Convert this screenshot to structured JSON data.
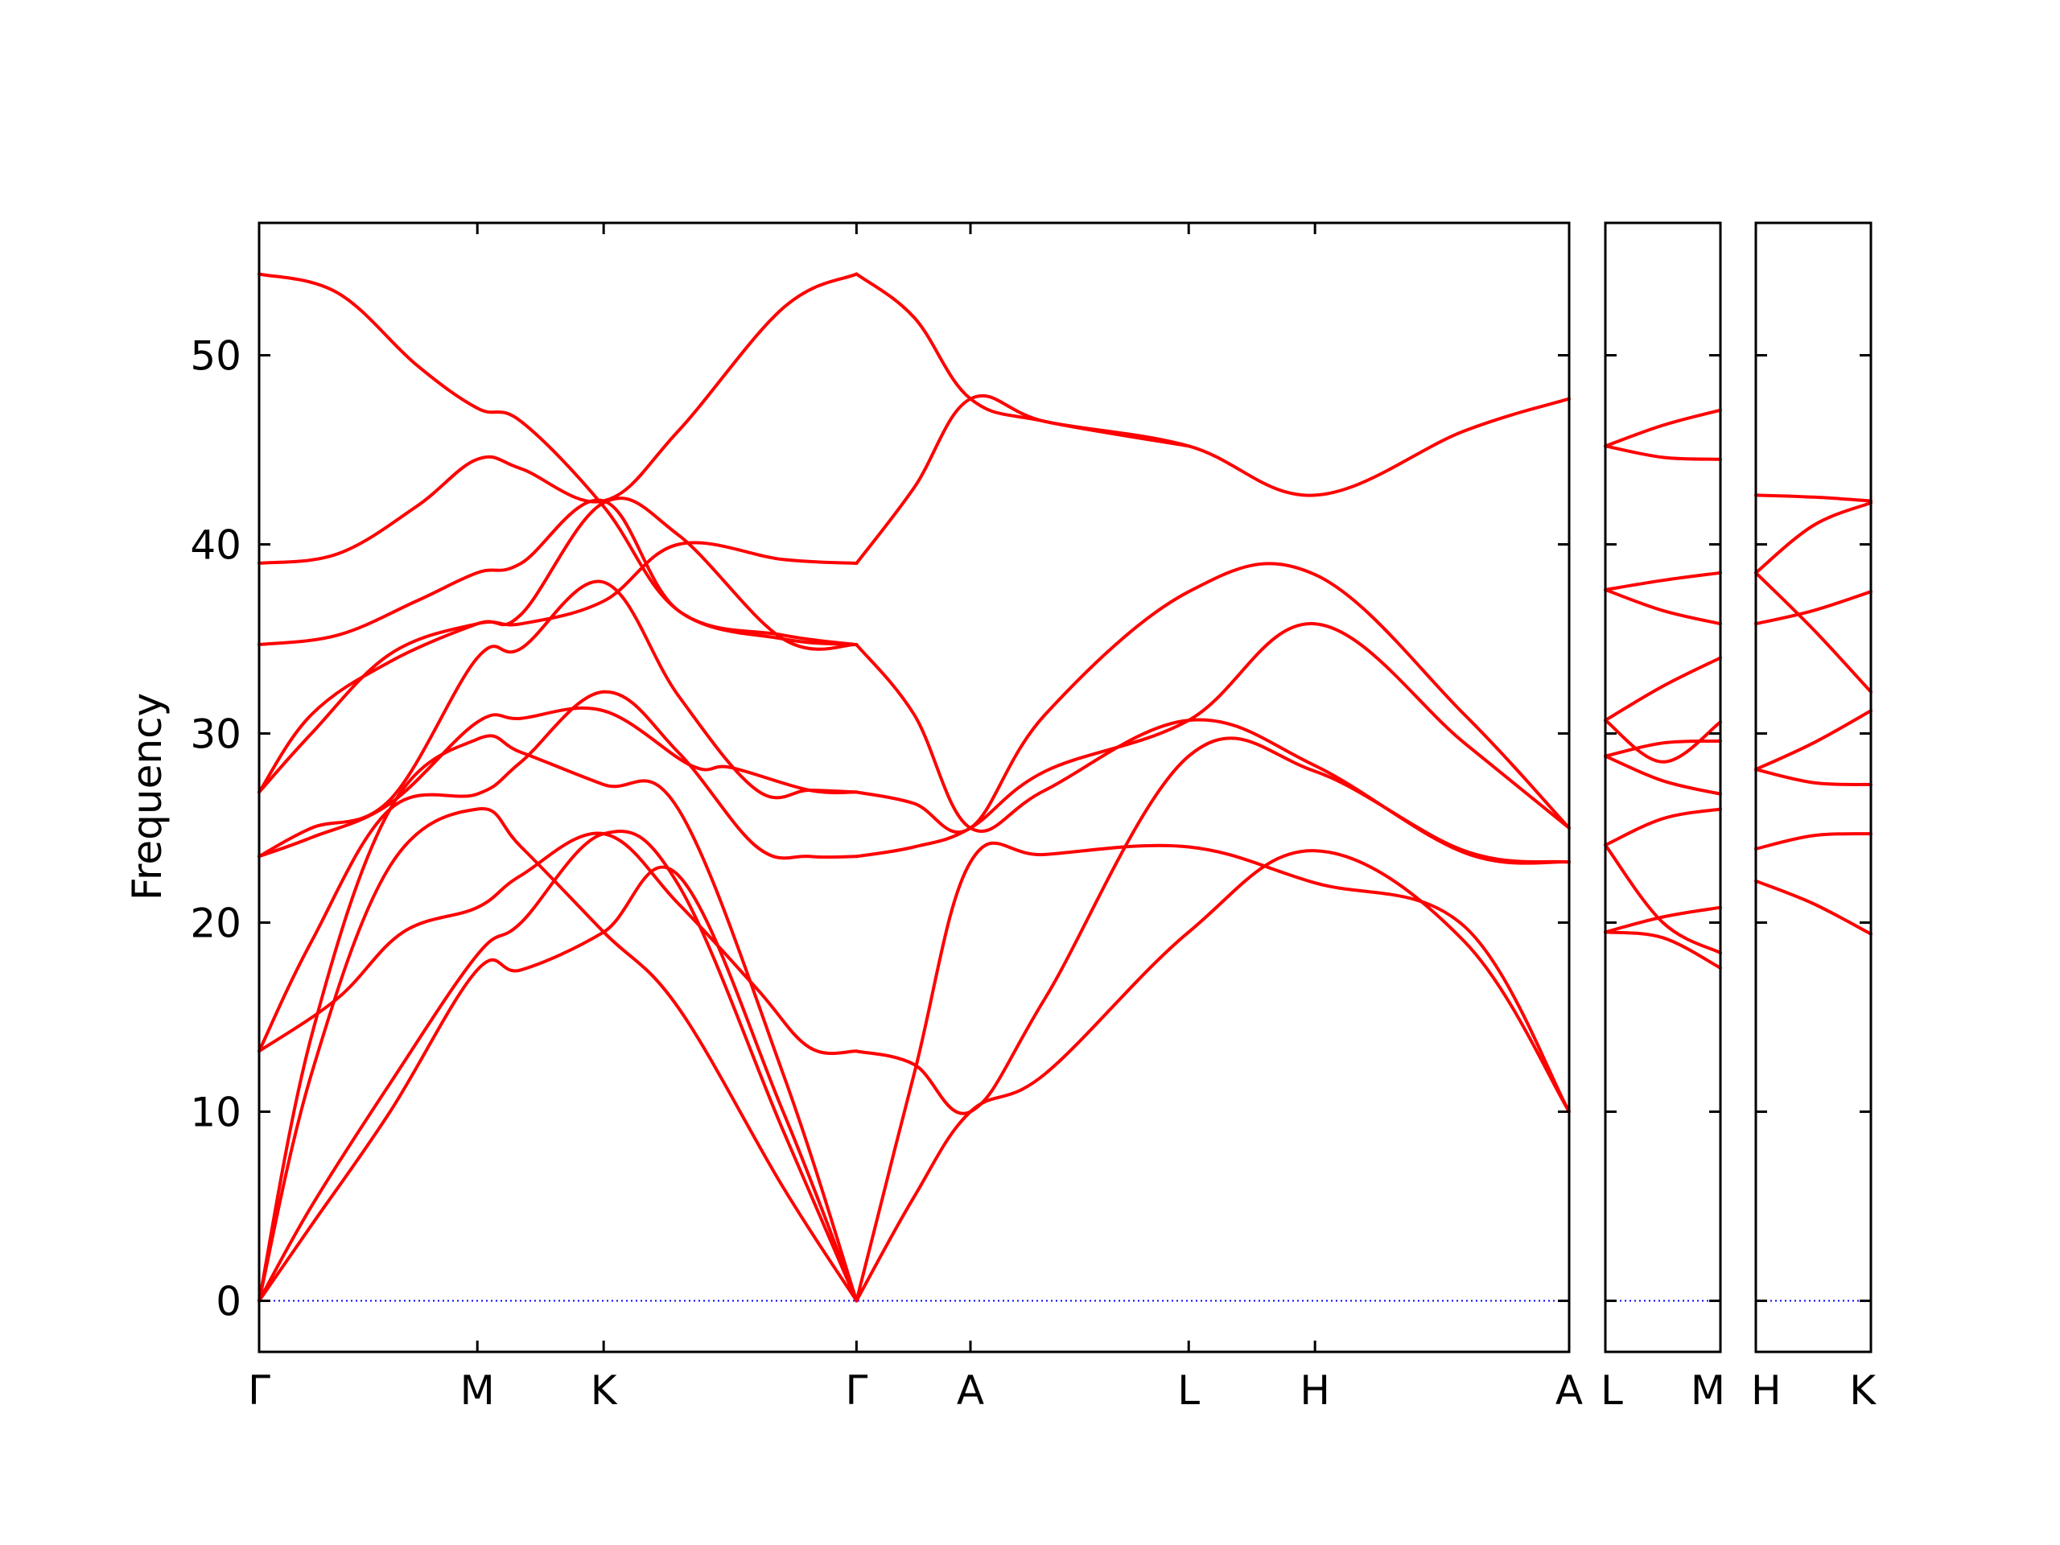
{
  "chart_data": {
    "type": "line",
    "ylabel": "Frequency",
    "ylim": [
      -2.7,
      57
    ],
    "yticks": [
      "0",
      "10",
      "20",
      "30",
      "40",
      "50"
    ],
    "colors": {
      "band": "#ff0000",
      "zero_line": "#0000ff"
    },
    "zero_line": "dotted",
    "panels": [
      {
        "name": "Γ-M-K-Γ-A-L-H-A",
        "xticks": [
          "Γ",
          "M",
          "K",
          "Γ",
          "A",
          "L",
          "H",
          "A"
        ],
        "xtick_positions": [
          0,
          0.833,
          1.315,
          2.28,
          2.715,
          3.548,
          4.03,
          5.0
        ],
        "xlim": [
          0,
          5.0
        ],
        "series": [
          {
            "x": [
              0,
              0.2,
              0.5,
              0.833,
              1.0,
              1.315,
              1.6,
              2.0,
              2.28
            ],
            "values": [
              0,
              4,
              10,
              17.5,
              17.5,
              19.5,
              22.5,
              10,
              0
            ]
          },
          {
            "x": [
              0,
              0.2,
              0.5,
              0.833,
              1.0,
              1.315,
              1.6,
              2.0,
              2.28
            ],
            "values": [
              0,
              5,
              11.5,
              18.3,
              20,
              24.7,
              22,
              9,
              0
            ]
          },
          {
            "x": [
              0,
              0.2,
              0.5,
              0.833,
              1.0,
              1.315,
              1.6,
              2.0,
              2.28
            ],
            "values": [
              0,
              12,
              23,
              26,
              24,
              19.5,
              15.5,
              6,
              0
            ]
          },
          {
            "x": [
              0,
              0.2,
              0.5,
              0.833,
              1.0,
              1.315,
              1.6,
              2.0,
              2.28
            ],
            "values": [
              0,
              14,
              26,
              29.7,
              29,
              27.3,
              26,
              12,
              0
            ]
          },
          {
            "x": [
              0,
              0.3,
              0.55,
              0.833,
              1.0,
              1.315,
              1.6,
              1.9,
              2.1,
              2.28
            ],
            "values": [
              13.2,
              16,
              19.5,
              20.8,
              22.5,
              24.7,
              21,
              16.5,
              13.4,
              13.2
            ]
          },
          {
            "x": [
              0,
              0.2,
              0.5,
              0.833,
              1.0,
              1.315,
              1.6,
              1.9,
              2.1,
              2.28
            ],
            "values": [
              13.2,
              19,
              26,
              26.8,
              28.5,
              32.2,
              29,
              24,
              23.5,
              23.5
            ]
          },
          {
            "x": [
              0,
              0.2,
              0.5,
              0.833,
              1.0,
              1.315,
              1.65,
              1.8,
              2.1,
              2.28
            ],
            "values": [
              23.5,
              24.5,
              26.3,
              30.6,
              30.8,
              31.2,
              28.3,
              28.2,
              27,
              26.9
            ]
          },
          {
            "x": [
              0,
              0.2,
              0.5,
              0.833,
              1.0,
              1.315,
              1.6,
              1.9,
              2.1,
              2.28
            ],
            "values": [
              23.5,
              25,
              26.5,
              34,
              34.5,
              38,
              32,
              27,
              27,
              26.9
            ]
          },
          {
            "x": [
              0,
              0.2,
              0.5,
              0.833,
              1.0,
              1.315,
              1.6,
              2.0,
              2.28
            ],
            "values": [
              26.9,
              30,
              34.2,
              35.8,
              35.8,
              37,
              40,
              39.2,
              39
            ]
          },
          {
            "x": [
              0,
              0.2,
              0.5,
              0.833,
              1.0,
              1.315,
              1.6,
              2.0,
              2.28
            ],
            "values": [
              26.9,
              31,
              33.8,
              35.8,
              36.3,
              42.2,
              40.5,
              35,
              34.7
            ]
          },
          {
            "x": [
              0,
              0.3,
              0.6,
              0.833,
              1.0,
              1.315,
              1.6,
              2.0,
              2.28
            ],
            "values": [
              34.7,
              35.2,
              37,
              38.5,
              39,
              42.3,
              36.5,
              35.2,
              34.7
            ]
          },
          {
            "x": [
              0,
              0.3,
              0.6,
              0.833,
              1.0,
              1.315,
              1.6,
              2.0,
              2.28
            ],
            "values": [
              39,
              39.5,
              42,
              44.5,
              44,
              42.3,
              46,
              52.5,
              54.3
            ]
          },
          {
            "x": [
              0,
              0.3,
              0.6,
              0.833,
              1.0,
              1.315,
              1.6,
              2.0,
              2.28
            ],
            "values": [
              54.3,
              53.3,
              49.5,
              47.2,
              46.5,
              42,
              36.5,
              35,
              34.7
            ]
          },
          {
            "x": [
              2.28,
              2.5,
              2.715,
              3.0,
              3.548,
              4.03,
              4.6,
              5.0
            ],
            "values": [
              0,
              5.5,
              10,
              12,
              19.5,
              23.8,
              19,
              10
            ]
          },
          {
            "x": [
              2.28,
              2.5,
              2.715,
              3.0,
              3.548,
              4.03,
              4.6,
              5.0
            ],
            "values": [
              0,
              12,
              23.2,
              23.6,
              24,
              22.1,
              19.8,
              10
            ]
          },
          {
            "x": [
              2.28,
              2.5,
              2.715,
              3.0,
              3.548,
              4.03,
              4.6,
              5.0
            ],
            "values": [
              13.2,
              12.5,
              10,
              16,
              28.8,
              28,
              23.8,
              23.2
            ]
          },
          {
            "x": [
              2.28,
              2.5,
              2.715,
              3.0,
              3.548,
              4.03,
              4.6,
              5.0
            ],
            "values": [
              23.5,
              24,
              25,
              28,
              30.7,
              35.8,
              29.5,
              25
            ]
          },
          {
            "x": [
              2.28,
              2.5,
              2.715,
              3.0,
              3.548,
              4.03,
              4.6,
              5.0
            ],
            "values": [
              26.9,
              26.3,
              25,
              31,
              37.5,
              38.4,
              31,
              25
            ]
          },
          {
            "x": [
              2.28,
              2.5,
              2.715,
              3.0,
              3.548,
              4.03,
              4.6,
              5.0
            ],
            "values": [
              34.7,
              31,
              25,
              27,
              30.7,
              28.3,
              23.7,
              23.2
            ]
          },
          {
            "x": [
              2.28,
              2.5,
              2.715,
              3.0,
              3.548,
              4.03,
              4.6,
              5.0
            ],
            "values": [
              39,
              43,
              47.7,
              46.5,
              45.2,
              42.6,
              46,
              47.7
            ]
          },
          {
            "x": [
              2.28,
              2.5,
              2.715,
              3.0,
              3.548
            ],
            "values": [
              54.3,
              52,
              47.7,
              46.5,
              45.2
            ]
          }
        ]
      },
      {
        "name": "L-M",
        "xticks": [
          "L",
          "M"
        ],
        "xtick_positions": [
          0,
          1
        ],
        "xlim": [
          0,
          1
        ],
        "series": [
          {
            "x": [
              0,
              0.5,
              1
            ],
            "values": [
              19.5,
              19.2,
              17.6
            ]
          },
          {
            "x": [
              0,
              0.5,
              1
            ],
            "values": [
              19.5,
              20.3,
              20.8
            ]
          },
          {
            "x": [
              0,
              0.5,
              1
            ],
            "values": [
              24.1,
              20,
              18.4
            ]
          },
          {
            "x": [
              0,
              0.5,
              1
            ],
            "values": [
              24.1,
              25.5,
              26
            ]
          },
          {
            "x": [
              0,
              0.5,
              1
            ],
            "values": [
              28.8,
              29.5,
              29.6
            ]
          },
          {
            "x": [
              0,
              0.5,
              1
            ],
            "values": [
              28.8,
              27.5,
              26.8
            ]
          },
          {
            "x": [
              0,
              0.5,
              1
            ],
            "values": [
              30.7,
              28.5,
              30.6
            ]
          },
          {
            "x": [
              0,
              0.5,
              1
            ],
            "values": [
              30.7,
              32.5,
              34
            ]
          },
          {
            "x": [
              0,
              0.5,
              1
            ],
            "values": [
              37.6,
              38.1,
              38.5
            ]
          },
          {
            "x": [
              0,
              0.5,
              1
            ],
            "values": [
              37.6,
              36.5,
              35.8
            ]
          },
          {
            "x": [
              0,
              0.5,
              1
            ],
            "values": [
              45.2,
              44.6,
              44.5
            ]
          },
          {
            "x": [
              0,
              0.5,
              1
            ],
            "values": [
              45.2,
              46.3,
              47.1
            ]
          }
        ]
      },
      {
        "name": "H-K",
        "xticks": [
          "H",
          "K"
        ],
        "xtick_positions": [
          0,
          1
        ],
        "xlim": [
          0,
          1
        ],
        "series": [
          {
            "x": [
              0,
              0.5,
              1
            ],
            "values": [
              22.2,
              21,
              19.4
            ]
          },
          {
            "x": [
              0,
              0.5,
              1
            ],
            "values": [
              23.9,
              24.6,
              24.7
            ]
          },
          {
            "x": [
              0,
              0.5,
              1
            ],
            "values": [
              28.1,
              27.4,
              27.3
            ]
          },
          {
            "x": [
              0,
              0.5,
              1
            ],
            "values": [
              28.1,
              29.5,
              31.2
            ]
          },
          {
            "x": [
              0,
              0.5,
              1
            ],
            "values": [
              38.5,
              35.5,
              32.2
            ]
          },
          {
            "x": [
              0,
              0.5,
              1
            ],
            "values": [
              35.8,
              36.5,
              37.5
            ]
          },
          {
            "x": [
              0,
              0.5,
              1
            ],
            "values": [
              38.5,
              41,
              42.2
            ]
          },
          {
            "x": [
              0,
              0.5,
              1
            ],
            "values": [
              42.6,
              42.5,
              42.3
            ]
          }
        ]
      }
    ]
  }
}
